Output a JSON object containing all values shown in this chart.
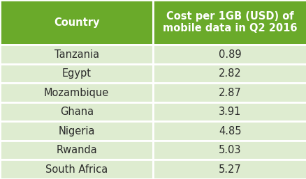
{
  "header_col1": "Country",
  "header_col2": "Cost per 1GB (USD) of\nmobile data in Q2 2016",
  "rows": [
    [
      "Tanzania",
      "0.89"
    ],
    [
      "Egypt",
      "2.82"
    ],
    [
      "Mozambique",
      "2.87"
    ],
    [
      "Ghana",
      "3.91"
    ],
    [
      "Nigeria",
      "4.85"
    ],
    [
      "Rwanda",
      "5.03"
    ],
    [
      "South Africa",
      "5.27"
    ]
  ],
  "header_bg": "#6aaa2a",
  "header_text_color": "#ffffff",
  "row_bg": "#deecd0",
  "row_text_color": "#2a2a2a",
  "border_color": "#ffffff",
  "col_split": 0.5,
  "fig_bg": "#ffffff",
  "font_size_header": 10.5,
  "font_size_row": 10.5
}
